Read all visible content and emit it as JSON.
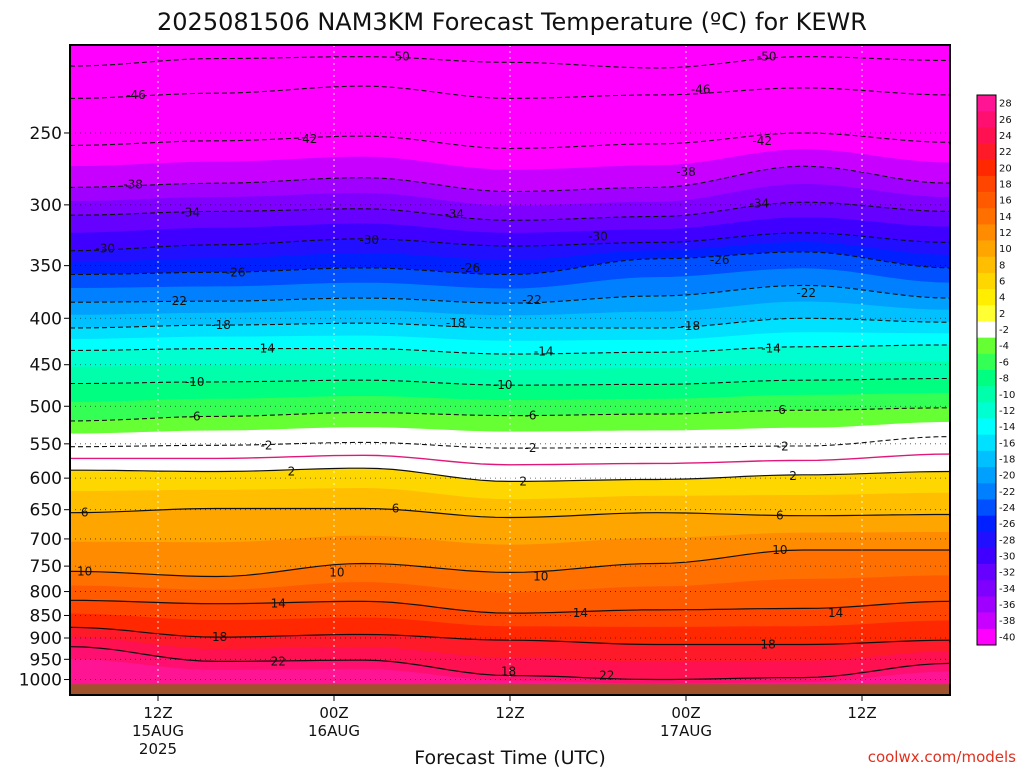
{
  "chart_data": {
    "type": "heatmap",
    "title": "2025081506 NAM3KM Forecast Temperature (ºC) for KEWR",
    "xlabel": "Forecast Time (UTC)",
    "credit": "coolwx.com/models",
    "y_axis": {
      "quantity": "pressure (hPa)",
      "scale": "log-pressure, inverted",
      "range": [
        1040,
        200
      ],
      "ticks": [
        250,
        300,
        350,
        400,
        450,
        500,
        550,
        600,
        650,
        700,
        750,
        800,
        850,
        900,
        950,
        1000
      ]
    },
    "x_axis": {
      "quantity": "forecast hour",
      "range": [
        0,
        60
      ],
      "ticks": [
        {
          "hour": 6,
          "lines": [
            "12Z",
            "15AUG",
            "2025"
          ]
        },
        {
          "hour": 18,
          "lines": [
            "00Z",
            "16AUG"
          ]
        },
        {
          "hour": 30,
          "lines": [
            "12Z"
          ]
        },
        {
          "hour": 42,
          "lines": [
            "00Z",
            "17AUG"
          ]
        },
        {
          "hour": 54,
          "lines": [
            "12Z"
          ]
        }
      ]
    },
    "colorbar": {
      "labels": [
        "28",
        "26",
        "24",
        "22",
        "20",
        "18",
        "16",
        "14",
        "12",
        "10",
        "8",
        "6",
        "4",
        "2",
        "-2",
        "-4",
        "-6",
        "-8",
        "-10",
        "-12",
        "-14",
        "-16",
        "-18",
        "-20",
        "-22",
        "-24",
        "-26",
        "-28",
        "-30",
        "-32",
        "-34",
        "-36",
        "-38",
        "-40"
      ],
      "colors": [
        "#ff1493",
        "#ff1070",
        "#ff1050",
        "#ff1a2a",
        "#ff2800",
        "#ff4500",
        "#ff5a00",
        "#ff7000",
        "#ff8c00",
        "#ffa500",
        "#ffbf00",
        "#ffd700",
        "#ffee00",
        "#ffff33",
        "#ffffff",
        "#66ff33",
        "#33ff55",
        "#00ff80",
        "#00ffaa",
        "#00ffd0",
        "#00ffff",
        "#00e0ff",
        "#00c0ff",
        "#00a0ff",
        "#0080ff",
        "#0050ff",
        "#0020ff",
        "#2010ff",
        "#4000ff",
        "#6600ff",
        "#8000ff",
        "#a000ff",
        "#c800ff",
        "#ff00ff"
      ]
    },
    "ground_level_hPa": 1012,
    "contours": [
      {
        "value": -50,
        "hour": [
          0,
          10,
          20,
          30,
          40,
          50,
          60
        ],
        "p": [
          211,
          207,
          206,
          209,
          212,
          206,
          208
        ]
      },
      {
        "value": -46,
        "hour": [
          0,
          10,
          20,
          30,
          40,
          50,
          60
        ],
        "p": [
          229,
          226,
          222,
          229,
          227,
          223,
          227
        ]
      },
      {
        "value": -42,
        "hour": [
          0,
          10,
          20,
          30,
          40,
          50,
          60
        ],
        "p": [
          258,
          255,
          252,
          260,
          257,
          250,
          256
        ]
      },
      {
        "value": -38,
        "hour": [
          0,
          10,
          20,
          30,
          40,
          50,
          60
        ],
        "p": [
          287,
          284,
          280,
          290,
          287,
          272,
          284
        ]
      },
      {
        "value": -34,
        "hour": [
          0,
          10,
          20,
          30,
          40,
          50,
          60
        ],
        "p": [
          308,
          305,
          303,
          312,
          309,
          298,
          305
        ]
      },
      {
        "value": -30,
        "hour": [
          0,
          10,
          20,
          30,
          40,
          50,
          60
        ],
        "p": [
          337,
          332,
          327,
          333,
          330,
          322,
          330
        ]
      },
      {
        "value": -26,
        "hour": [
          0,
          10,
          20,
          30,
          40,
          50,
          60
        ],
        "p": [
          358,
          356,
          352,
          358,
          344,
          338,
          352
        ]
      },
      {
        "value": -22,
        "hour": [
          0,
          10,
          20,
          30,
          40,
          50,
          60
        ],
        "p": [
          384,
          383,
          380,
          385,
          378,
          368,
          380
        ]
      },
      {
        "value": -18,
        "hour": [
          0,
          10,
          20,
          30,
          40,
          50,
          60
        ],
        "p": [
          410,
          407,
          405,
          410,
          410,
          400,
          404
        ]
      },
      {
        "value": -14,
        "hour": [
          0,
          10,
          20,
          30,
          40,
          50,
          60
        ],
        "p": [
          434,
          432,
          432,
          438,
          436,
          430,
          428
        ]
      },
      {
        "value": -10,
        "hour": [
          0,
          10,
          20,
          30,
          40,
          50,
          60
        ],
        "p": [
          472,
          470,
          468,
          474,
          473,
          468,
          466
        ]
      },
      {
        "value": -6,
        "hour": [
          0,
          10,
          20,
          30,
          40,
          50,
          60
        ],
        "p": [
          519,
          513,
          508,
          512,
          510,
          505,
          502
        ]
      },
      {
        "value": -2,
        "hour": [
          0,
          10,
          20,
          30,
          40,
          50,
          60
        ],
        "p": [
          554,
          552,
          548,
          556,
          555,
          553,
          540
        ]
      },
      {
        "value": 2,
        "hour": [
          0,
          10,
          20,
          30,
          40,
          50,
          60
        ],
        "p": [
          588,
          590,
          585,
          605,
          602,
          595,
          590
        ]
      },
      {
        "value": 6,
        "hour": [
          0,
          10,
          20,
          30,
          40,
          50,
          60
        ],
        "p": [
          655,
          648,
          648,
          663,
          655,
          660,
          658
        ]
      },
      {
        "value": 10,
        "hour": [
          0,
          10,
          20,
          30,
          40,
          50,
          60
        ],
        "p": [
          760,
          770,
          745,
          762,
          745,
          720,
          720
        ]
      },
      {
        "value": 14,
        "hour": [
          0,
          10,
          20,
          30,
          40,
          50,
          60
        ],
        "p": [
          818,
          825,
          820,
          845,
          838,
          835,
          820
        ]
      },
      {
        "value": 18,
        "hour": [
          0,
          10,
          20,
          30,
          40,
          50,
          60
        ],
        "p": [
          876,
          898,
          892,
          905,
          915,
          915,
          905
        ]
      },
      {
        "value": 22,
        "hour": [
          0,
          10,
          20,
          30,
          40,
          50,
          60
        ],
        "p": [
          920,
          955,
          952,
          990,
          1000,
          995,
          960
        ]
      }
    ],
    "contour_labels": [
      {
        "text": "-50",
        "hour": 22.5,
        "p": 206
      },
      {
        "text": "-50",
        "hour": 47.5,
        "p": 206
      },
      {
        "text": "-46",
        "hour": 4.5,
        "p": 227
      },
      {
        "text": "-46",
        "hour": 43.0,
        "p": 224
      },
      {
        "text": "-42",
        "hour": 16.2,
        "p": 254
      },
      {
        "text": "-42",
        "hour": 47.2,
        "p": 255
      },
      {
        "text": "-38",
        "hour": 4.3,
        "p": 285
      },
      {
        "text": "-38",
        "hour": 42.0,
        "p": 276
      },
      {
        "text": "-34",
        "hour": 8.2,
        "p": 306
      },
      {
        "text": "-34",
        "hour": 26.2,
        "p": 307
      },
      {
        "text": "-34",
        "hour": 47.0,
        "p": 299
      },
      {
        "text": "-30",
        "hour": 2.4,
        "p": 335
      },
      {
        "text": "-30",
        "hour": 20.4,
        "p": 328
      },
      {
        "text": "-30",
        "hour": 36.0,
        "p": 325
      },
      {
        "text": "-26",
        "hour": 11.3,
        "p": 356
      },
      {
        "text": "-26",
        "hour": 27.3,
        "p": 352
      },
      {
        "text": "-26",
        "hour": 44.3,
        "p": 345
      },
      {
        "text": "-22",
        "hour": 7.3,
        "p": 383
      },
      {
        "text": "-22",
        "hour": 31.5,
        "p": 382
      },
      {
        "text": "-22",
        "hour": 50.2,
        "p": 375
      },
      {
        "text": "-18",
        "hour": 10.3,
        "p": 407
      },
      {
        "text": "-18",
        "hour": 26.3,
        "p": 405
      },
      {
        "text": "-18",
        "hour": 42.3,
        "p": 408
      },
      {
        "text": "-14",
        "hour": 13.3,
        "p": 432
      },
      {
        "text": "-14",
        "hour": 32.3,
        "p": 435
      },
      {
        "text": "-14",
        "hour": 47.8,
        "p": 432
      },
      {
        "text": "-10",
        "hour": 8.5,
        "p": 470
      },
      {
        "text": "-10",
        "hour": 29.5,
        "p": 474
      },
      {
        "text": "-6",
        "hour": 8.5,
        "p": 513
      },
      {
        "text": "-6",
        "hour": 31.4,
        "p": 512
      },
      {
        "text": "-6",
        "hour": 48.4,
        "p": 505
      },
      {
        "text": "-2",
        "hour": 13.4,
        "p": 552
      },
      {
        "text": "-2",
        "hour": 31.4,
        "p": 556
      },
      {
        "text": "-2",
        "hour": 48.6,
        "p": 554
      },
      {
        "text": "2",
        "hour": 15.1,
        "p": 590
      },
      {
        "text": "2",
        "hour": 30.9,
        "p": 605
      },
      {
        "text": "2",
        "hour": 49.3,
        "p": 597
      },
      {
        "text": "6",
        "hour": 1.0,
        "p": 655
      },
      {
        "text": "6",
        "hour": 22.2,
        "p": 648
      },
      {
        "text": "6",
        "hour": 48.4,
        "p": 660
      },
      {
        "text": "10",
        "hour": 1.0,
        "p": 760
      },
      {
        "text": "10",
        "hour": 18.2,
        "p": 762
      },
      {
        "text": "10",
        "hour": 32.1,
        "p": 770
      },
      {
        "text": "10",
        "hour": 48.4,
        "p": 720
      },
      {
        "text": "14",
        "hour": 14.2,
        "p": 825
      },
      {
        "text": "14",
        "hour": 34.8,
        "p": 845
      },
      {
        "text": "14",
        "hour": 52.2,
        "p": 845
      },
      {
        "text": "18",
        "hour": 10.2,
        "p": 898
      },
      {
        "text": "18",
        "hour": 29.9,
        "p": 980
      },
      {
        "text": "18",
        "hour": 47.6,
        "p": 915
      },
      {
        "text": "22",
        "hour": 14.2,
        "p": 955
      },
      {
        "text": "22",
        "hour": 36.6,
        "p": 990
      }
    ]
  }
}
